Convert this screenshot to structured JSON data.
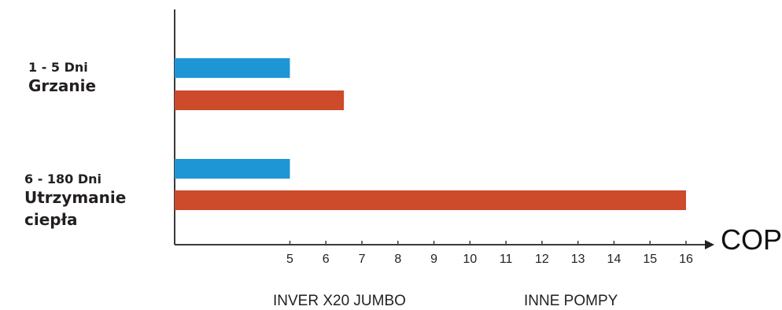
{
  "chart_data": {
    "type": "bar",
    "orientation": "horizontal",
    "categories": [
      {
        "range": "1 - 5 Dni",
        "name": "Grzanie"
      },
      {
        "range": "6 - 180 Dni",
        "name": "Utrzymanie ciepła"
      }
    ],
    "series": [
      {
        "name": "INVER X20 JUMBO",
        "color": "#1e96d6",
        "values": [
          5,
          5
        ]
      },
      {
        "name": "INNE POMPY",
        "color": "#cd4a2b",
        "values": [
          6.5,
          16
        ]
      }
    ],
    "xlabel": "COP",
    "xticks": [
      5,
      6,
      7,
      8,
      9,
      10,
      11,
      12,
      13,
      14,
      15,
      16
    ],
    "xlim": [
      1.8,
      16
    ]
  }
}
